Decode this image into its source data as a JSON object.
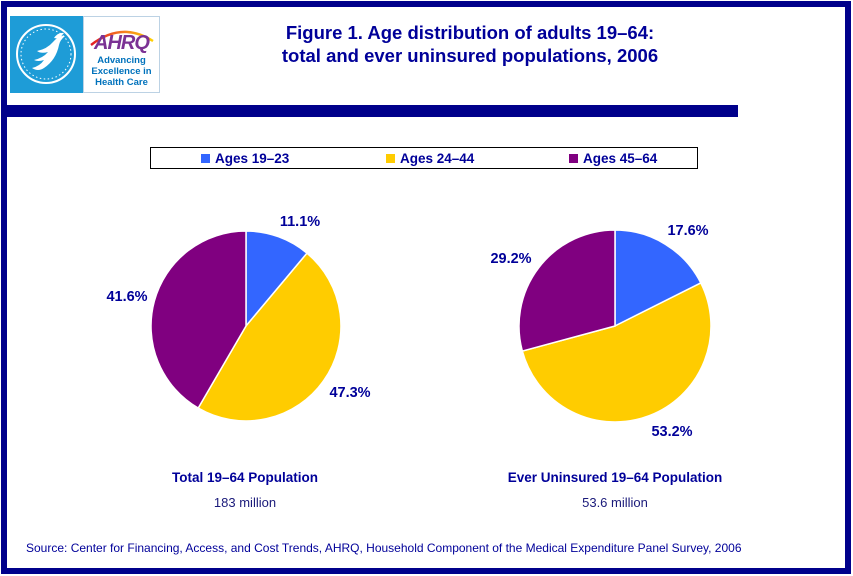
{
  "header": {
    "title_line1": "Figure 1. Age distribution of adults 19–64:",
    "title_line2": "total and ever uninsured populations, 2006"
  },
  "logo": {
    "ahrq": "AHRQ",
    "tagline_line1": "Advancing",
    "tagline_line2": "Excellence in",
    "tagline_line3": "Health Care"
  },
  "colors": {
    "navy_text": "#000099",
    "divider_bar": "#00008B",
    "page_border": "#00008B",
    "slice_blue": "#3366FF",
    "slice_yellow": "#FFCC00",
    "slice_purple": "#800080",
    "hhs_logo_background": "#1E9CD7",
    "ahrq_wordmark": "#7B3294",
    "ahrq_tagline_blue": "#0072BC"
  },
  "legend": {
    "items": [
      {
        "label": "Ages 19–23",
        "color": "#3366FF"
      },
      {
        "label": "Ages 24–44",
        "color": "#FFCC00"
      },
      {
        "label": "Ages 45–64",
        "color": "#800080"
      }
    ]
  },
  "chart_data": [
    {
      "type": "pie",
      "title": "Total 19–64 Population",
      "subtitle": "183 million",
      "start_angle_deg": 0,
      "direction": "clockwise",
      "slices": [
        {
          "label": "Ages 19–23",
          "value": 11.1,
          "display": "11.1%",
          "color": "#3366FF"
        },
        {
          "label": "Ages 24–44",
          "value": 47.3,
          "display": "47.3%",
          "color": "#FFCC00"
        },
        {
          "label": "Ages 45–64",
          "value": 41.6,
          "display": "41.6%",
          "color": "#800080"
        }
      ]
    },
    {
      "type": "pie",
      "title": "Ever Uninsured 19–64 Population",
      "subtitle": "53.6 million",
      "start_angle_deg": 0,
      "direction": "clockwise",
      "slices": [
        {
          "label": "Ages 19–23",
          "value": 17.6,
          "display": "17.6%",
          "color": "#3366FF"
        },
        {
          "label": "Ages 24–44",
          "value": 53.2,
          "display": "53.2%",
          "color": "#FFCC00"
        },
        {
          "label": "Ages 45–64",
          "value": 29.2,
          "display": "29.2%",
          "color": "#800080"
        }
      ]
    }
  ],
  "footer": {
    "source": "Source: Center for Financing, Access, and Cost Trends, AHRQ, Household Component of the Medical Expenditure Panel Survey, 2006"
  }
}
